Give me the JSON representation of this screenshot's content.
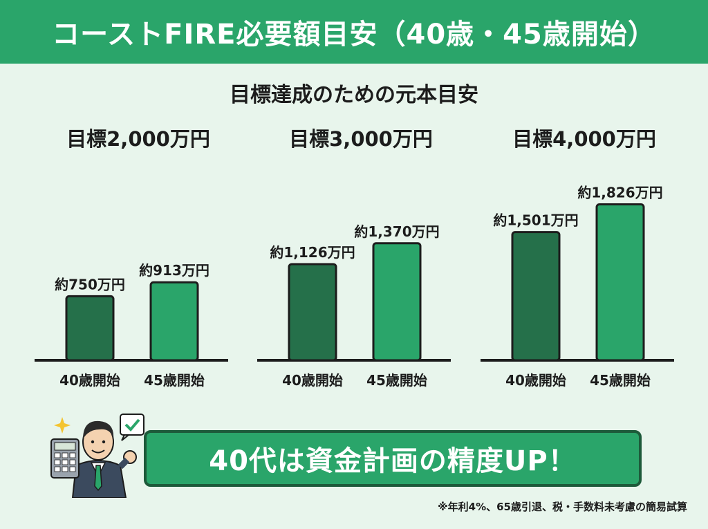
{
  "title": "コーストFIRE必要額目安（40歳・45歳開始）",
  "subtitle": "目標達成のための元本目安",
  "colors": {
    "header": "#2aa56a",
    "bar_40": "#25704a",
    "bar_45": "#2aa56a",
    "bar_border": "#1c1c1c"
  },
  "chart_data": [
    {
      "type": "bar",
      "title": "目標2,000万円",
      "categories": [
        "40歳開始",
        "45歳開始"
      ],
      "values": [
        750,
        913
      ],
      "value_labels": [
        "約750万円",
        "約913万円"
      ],
      "unit": "万円",
      "ylim": [
        0,
        2000
      ]
    },
    {
      "type": "bar",
      "title": "目標3,000万円",
      "categories": [
        "40歳開始",
        "45歳開始"
      ],
      "values": [
        1126,
        1370
      ],
      "value_labels": [
        "約1,126万円",
        "約1,370万円"
      ],
      "unit": "万円",
      "ylim": [
        0,
        2000
      ]
    },
    {
      "type": "bar",
      "title": "目標4,000万円",
      "categories": [
        "40歳開始",
        "45歳開始"
      ],
      "values": [
        1501,
        1826
      ],
      "value_labels": [
        "約1,501万円",
        "約1,826万円"
      ],
      "unit": "万円",
      "ylim": [
        0,
        2000
      ]
    }
  ],
  "banner": "40代は資金計画の精度UP！",
  "footnote": "※年利4%、65歳引退、税・手数料未考慮の簡易試算",
  "icons": [
    "sparkle-icon",
    "checkmark-bubble-icon",
    "calculator-icon",
    "businessman-illustration"
  ]
}
